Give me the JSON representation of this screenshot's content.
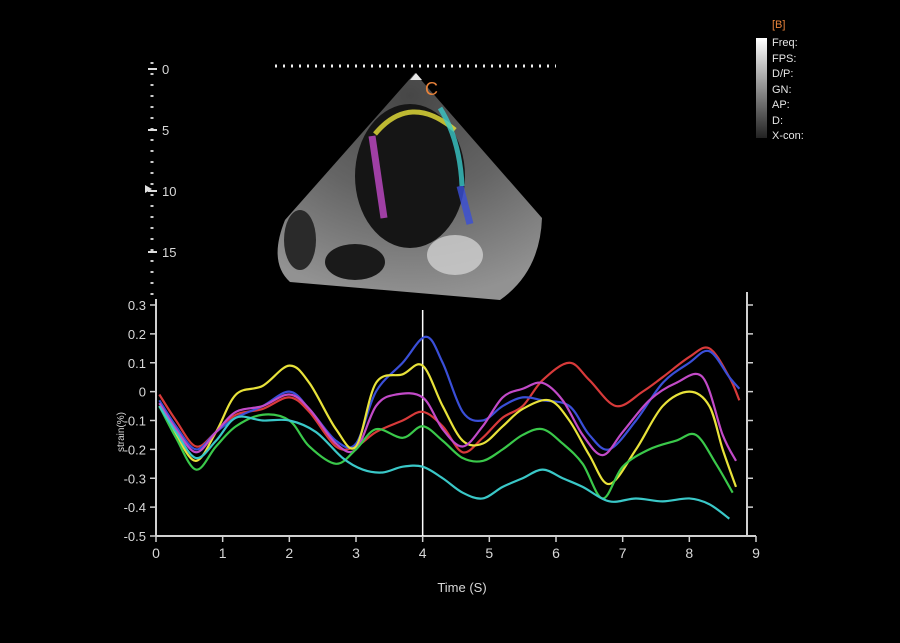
{
  "overlay": {
    "preset_label": "[B]",
    "probe_marker": "C",
    "params": [
      "Freq:",
      "FPS:",
      "D/P:",
      "GN:",
      "AP:",
      "D:",
      "X-con:"
    ],
    "depth_ticks": [
      0,
      5,
      10,
      15
    ]
  },
  "colors": {
    "background": "#000000",
    "axis": "#d0d0d0",
    "marker_orange": "#e8823a"
  },
  "chart_data": {
    "type": "line",
    "title": "",
    "xlabel": "Time (S)",
    "ylabel": "strain(%)",
    "xlim": [
      0,
      9
    ],
    "ylim": [
      -0.5,
      0.3
    ],
    "xticks": [
      0,
      1,
      2,
      3,
      4,
      5,
      6,
      7,
      8,
      9
    ],
    "yticks": [
      0.3,
      0.2,
      0.1,
      0,
      -0.1,
      -0.2,
      -0.3,
      -0.4,
      -0.5
    ],
    "ytick_labels": [
      "0.3",
      "0.2",
      "0.1",
      "0",
      "-0.1",
      "-0.2",
      "-0.3",
      "-0.4",
      "-0.5"
    ],
    "cursor_x": 4.0,
    "grid": false,
    "series": [
      {
        "color": "#d83a3a",
        "points": [
          [
            0.05,
            -0.01
          ],
          [
            0.3,
            -0.1
          ],
          [
            0.6,
            -0.19
          ],
          [
            0.9,
            -0.14
          ],
          [
            1.2,
            -0.08
          ],
          [
            1.6,
            -0.06
          ],
          [
            2.0,
            -0.02
          ],
          [
            2.3,
            -0.07
          ],
          [
            2.7,
            -0.19
          ],
          [
            3.0,
            -0.19
          ],
          [
            3.3,
            -0.14
          ],
          [
            3.7,
            -0.1
          ],
          [
            4.0,
            -0.07
          ],
          [
            4.3,
            -0.12
          ],
          [
            4.6,
            -0.21
          ],
          [
            4.9,
            -0.16
          ],
          [
            5.2,
            -0.09
          ],
          [
            5.5,
            -0.05
          ],
          [
            5.8,
            0.04
          ],
          [
            6.2,
            0.1
          ],
          [
            6.5,
            0.04
          ],
          [
            6.9,
            -0.05
          ],
          [
            7.3,
            0.0
          ],
          [
            7.6,
            0.05
          ],
          [
            8.0,
            0.12
          ],
          [
            8.3,
            0.15
          ],
          [
            8.6,
            0.05
          ],
          [
            8.75,
            -0.03
          ]
        ]
      },
      {
        "color": "#3a4fd8",
        "points": [
          [
            0.05,
            -0.03
          ],
          [
            0.3,
            -0.12
          ],
          [
            0.6,
            -0.2
          ],
          [
            0.9,
            -0.14
          ],
          [
            1.2,
            -0.09
          ],
          [
            1.6,
            -0.05
          ],
          [
            2.0,
            0.0
          ],
          [
            2.3,
            -0.06
          ],
          [
            2.7,
            -0.17
          ],
          [
            3.0,
            -0.18
          ],
          [
            3.3,
            0.0
          ],
          [
            3.7,
            0.1
          ],
          [
            4.05,
            0.19
          ],
          [
            4.3,
            0.1
          ],
          [
            4.6,
            -0.07
          ],
          [
            4.9,
            -0.1
          ],
          [
            5.2,
            -0.05
          ],
          [
            5.5,
            -0.02
          ],
          [
            5.8,
            -0.03
          ],
          [
            6.2,
            -0.05
          ],
          [
            6.5,
            -0.15
          ],
          [
            6.8,
            -0.2
          ],
          [
            7.2,
            -0.1
          ],
          [
            7.6,
            0.03
          ],
          [
            8.0,
            0.1
          ],
          [
            8.3,
            0.14
          ],
          [
            8.6,
            0.05
          ],
          [
            8.75,
            0.01
          ]
        ]
      },
      {
        "color": "#e8e23a",
        "points": [
          [
            0.05,
            -0.05
          ],
          [
            0.3,
            -0.15
          ],
          [
            0.6,
            -0.24
          ],
          [
            0.9,
            -0.14
          ],
          [
            1.2,
            -0.01
          ],
          [
            1.6,
            0.02
          ],
          [
            2.0,
            0.09
          ],
          [
            2.3,
            0.03
          ],
          [
            2.7,
            -0.13
          ],
          [
            3.0,
            -0.19
          ],
          [
            3.3,
            0.03
          ],
          [
            3.7,
            0.06
          ],
          [
            4.0,
            0.09
          ],
          [
            4.3,
            -0.05
          ],
          [
            4.6,
            -0.17
          ],
          [
            4.9,
            -0.18
          ],
          [
            5.2,
            -0.12
          ],
          [
            5.5,
            -0.06
          ],
          [
            5.9,
            -0.03
          ],
          [
            6.2,
            -0.1
          ],
          [
            6.5,
            -0.22
          ],
          [
            6.8,
            -0.32
          ],
          [
            7.2,
            -0.2
          ],
          [
            7.6,
            -0.05
          ],
          [
            8.0,
            0.0
          ],
          [
            8.3,
            -0.05
          ],
          [
            8.5,
            -0.2
          ],
          [
            8.7,
            -0.33
          ]
        ]
      },
      {
        "color": "#c24ac8",
        "points": [
          [
            0.05,
            -0.04
          ],
          [
            0.3,
            -0.13
          ],
          [
            0.6,
            -0.21
          ],
          [
            0.9,
            -0.14
          ],
          [
            1.2,
            -0.07
          ],
          [
            1.6,
            -0.05
          ],
          [
            2.0,
            -0.01
          ],
          [
            2.3,
            -0.06
          ],
          [
            2.7,
            -0.18
          ],
          [
            3.0,
            -0.2
          ],
          [
            3.3,
            -0.05
          ],
          [
            3.6,
            -0.01
          ],
          [
            4.0,
            -0.02
          ],
          [
            4.3,
            -0.13
          ],
          [
            4.6,
            -0.19
          ],
          [
            4.9,
            -0.12
          ],
          [
            5.2,
            -0.02
          ],
          [
            5.5,
            0.01
          ],
          [
            5.8,
            0.03
          ],
          [
            6.1,
            -0.03
          ],
          [
            6.4,
            -0.15
          ],
          [
            6.7,
            -0.22
          ],
          [
            7.0,
            -0.14
          ],
          [
            7.4,
            -0.03
          ],
          [
            7.8,
            0.03
          ],
          [
            8.2,
            0.05
          ],
          [
            8.5,
            -0.15
          ],
          [
            8.7,
            -0.24
          ]
        ]
      },
      {
        "color": "#3ac84a",
        "points": [
          [
            0.05,
            -0.05
          ],
          [
            0.3,
            -0.16
          ],
          [
            0.6,
            -0.27
          ],
          [
            0.9,
            -0.19
          ],
          [
            1.2,
            -0.12
          ],
          [
            1.6,
            -0.08
          ],
          [
            2.0,
            -0.1
          ],
          [
            2.3,
            -0.19
          ],
          [
            2.7,
            -0.25
          ],
          [
            3.0,
            -0.2
          ],
          [
            3.3,
            -0.13
          ],
          [
            3.7,
            -0.16
          ],
          [
            4.0,
            -0.12
          ],
          [
            4.3,
            -0.17
          ],
          [
            4.6,
            -0.23
          ],
          [
            4.9,
            -0.24
          ],
          [
            5.2,
            -0.2
          ],
          [
            5.5,
            -0.15
          ],
          [
            5.8,
            -0.13
          ],
          [
            6.1,
            -0.18
          ],
          [
            6.4,
            -0.25
          ],
          [
            6.7,
            -0.37
          ],
          [
            7.0,
            -0.26
          ],
          [
            7.4,
            -0.2
          ],
          [
            7.8,
            -0.17
          ],
          [
            8.1,
            -0.15
          ],
          [
            8.4,
            -0.25
          ],
          [
            8.65,
            -0.35
          ]
        ]
      },
      {
        "color": "#3ac8c8",
        "points": [
          [
            0.05,
            -0.05
          ],
          [
            0.3,
            -0.14
          ],
          [
            0.6,
            -0.23
          ],
          [
            0.9,
            -0.17
          ],
          [
            1.2,
            -0.09
          ],
          [
            1.6,
            -0.1
          ],
          [
            2.0,
            -0.1
          ],
          [
            2.4,
            -0.14
          ],
          [
            2.8,
            -0.23
          ],
          [
            3.1,
            -0.27
          ],
          [
            3.4,
            -0.28
          ],
          [
            3.7,
            -0.26
          ],
          [
            4.0,
            -0.26
          ],
          [
            4.3,
            -0.3
          ],
          [
            4.6,
            -0.35
          ],
          [
            4.9,
            -0.37
          ],
          [
            5.2,
            -0.33
          ],
          [
            5.5,
            -0.3
          ],
          [
            5.8,
            -0.27
          ],
          [
            6.1,
            -0.3
          ],
          [
            6.4,
            -0.33
          ],
          [
            6.8,
            -0.38
          ],
          [
            7.2,
            -0.37
          ],
          [
            7.6,
            -0.38
          ],
          [
            8.0,
            -0.37
          ],
          [
            8.3,
            -0.39
          ],
          [
            8.6,
            -0.44
          ]
        ]
      }
    ]
  }
}
